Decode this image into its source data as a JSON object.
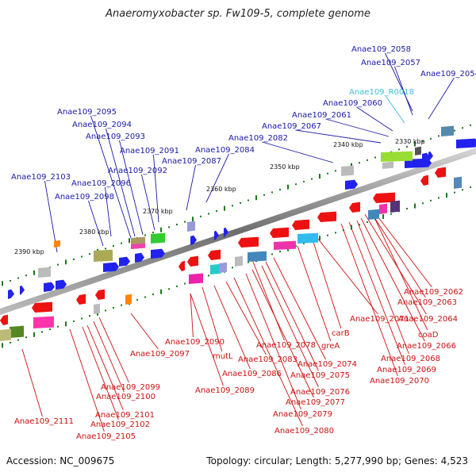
{
  "title": "Anaeromyxobacter sp. Fw109-5, complete genome",
  "footer": {
    "accession": "Accession: NC_009675",
    "summary": "Topology: circular; Length: 5,277,990 bp; Genes: 4,523"
  },
  "colors": {
    "forward": "#2222ee",
    "reverse": "#ee1111",
    "rna": "#44bbdd",
    "backbone": "#7a7a7a",
    "scale": "#1a7a1a"
  },
  "scale_labels": [
    "2330 kbp",
    "2340 kbp",
    "2350 kbp",
    "2360 kbp",
    "2370 kbp",
    "2380 kbp",
    "2390 kbp"
  ],
  "labels_top": [
    "Anae109_2058",
    "Anae109_2057",
    "Anae109_2054",
    "Anae109_R0018",
    "Anae109_2060",
    "Anae109_2061",
    "Anae109_2067",
    "Anae109_2082",
    "Anae109_2084",
    "Anae109_2087",
    "Anae109_2095",
    "Anae109_2094",
    "Anae109_2093",
    "Anae109_2091",
    "Anae109_2092",
    "Anae109_2103",
    "Anae109_2096",
    "Anae109_2098"
  ],
  "labels_bottom": [
    "Anae109_2062",
    "Anae109_2063",
    "Anae109_2064",
    "coaD",
    "Anae109_2066",
    "Anae109_2068",
    "Anae109_2069",
    "Anae109_2070",
    "Anae109_2071",
    "carB",
    "greA",
    "Anae109_2078",
    "Anae109_2074",
    "Anae109_2075",
    "Anae109_2076",
    "Anae109_2077",
    "Anae109_2079",
    "Anae109_2080",
    "Anae109_2083",
    "Anae109_2086",
    "mutL",
    "Anae109_2090",
    "Anae109_2097",
    "Anae109_2089",
    "Anae109_2099",
    "Anae109_2100",
    "Anae109_2101",
    "Anae109_2102",
    "Anae109_2105",
    "Anae109_2111"
  ]
}
